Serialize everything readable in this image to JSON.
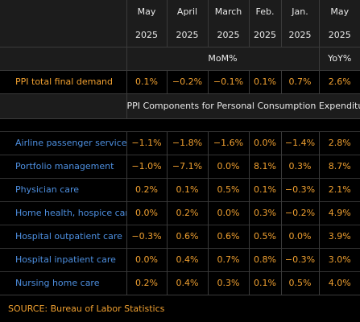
{
  "header": {
    "months": [
      "May",
      "April",
      "March",
      "Feb.",
      "Jan.",
      "May"
    ],
    "years": [
      "2025",
      "2025",
      "2025",
      "2025",
      "2025",
      "2025"
    ],
    "unit_mom": "MoM%",
    "unit_yoy": "YoY%"
  },
  "main_row": {
    "label": "PPI total final demand",
    "values": [
      "0.1%",
      "−0.2%",
      "−0.1%",
      "0.1%",
      "0.7%",
      "2.6%"
    ]
  },
  "section_title": "PPI Components for Personal Consumption Expenditure",
  "rows": [
    {
      "label": "Airline passenger services",
      "values": [
        "−1.1%",
        "−1.8%",
        "−1.6%",
        "0.0%",
        "−1.4%",
        "2.8%"
      ]
    },
    {
      "label": "Portfolio management",
      "values": [
        "−1.0%",
        "−7.1%",
        "0.0%",
        "8.1%",
        "0.3%",
        "8.7%"
      ]
    },
    {
      "label": "Physician care",
      "values": [
        "0.2%",
        "0.1%",
        "0.5%",
        "0.1%",
        "−0.3%",
        "2.1%"
      ]
    },
    {
      "label": "Home health, hospice care",
      "values": [
        "0.0%",
        "0.2%",
        "0.0%",
        "0.3%",
        "−0.2%",
        "4.9%"
      ]
    },
    {
      "label": "Hospital outpatient care",
      "values": [
        "−0.3%",
        "0.6%",
        "0.6%",
        "0.5%",
        "0.0%",
        "3.9%"
      ]
    },
    {
      "label": "Hospital inpatient care",
      "values": [
        "0.0%",
        "0.4%",
        "0.7%",
        "0.8%",
        "−0.3%",
        "3.0%"
      ]
    },
    {
      "label": "Nursing home care",
      "values": [
        "0.2%",
        "0.4%",
        "0.3%",
        "0.1%",
        "0.5%",
        "4.0%"
      ]
    }
  ],
  "source": "SOURCE: Bureau of Labor Statistics",
  "colors": {
    "background": "#000000",
    "band": "#1c1c1c",
    "value_orange": "#f0a030",
    "label_blue": "#4d8fe0",
    "header_text": "#e8e8e8"
  }
}
